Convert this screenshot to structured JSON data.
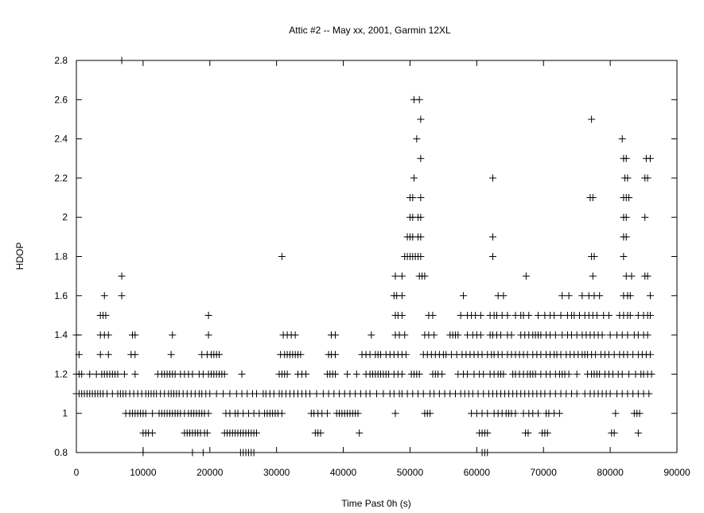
{
  "chart_data": {
    "type": "scatter",
    "title": "Attic #2 -- May xx, 2001, Garmin 12XL",
    "xlabel": "Time Past 0h  (s)",
    "ylabel": "HDOP",
    "xlim": [
      0,
      90000
    ],
    "ylim": [
      0.8,
      2.8
    ],
    "xticks": [
      "0",
      "10000",
      "20000",
      "30000",
      "40000",
      "50000",
      "60000",
      "70000",
      "80000",
      "90000"
    ],
    "yticks": [
      "0.8",
      "1",
      "1.2",
      "1.4",
      "1.6",
      "1.8",
      "2",
      "2.2",
      "2.4",
      "2.6",
      "2.8"
    ],
    "marker": "plus",
    "grid": false,
    "legend": "none",
    "series": [
      {
        "y": 0.8,
        "x": [
          10000,
          17400,
          19000,
          24600,
          25000,
          25400,
          25800,
          26200,
          26600,
          60800,
          61200,
          61600
        ]
      },
      {
        "y": 0.9,
        "x": [
          10000,
          10400,
          10800,
          11400,
          16200,
          16600,
          17000,
          17400,
          17800,
          18200,
          18600,
          19200,
          19600,
          22200,
          22600,
          23000,
          23400,
          23800,
          24200,
          24600,
          25000,
          25400,
          25800,
          26200,
          26600,
          27000,
          35800,
          36200,
          36600,
          42400,
          60400,
          60800,
          61200,
          61600,
          67300,
          67700,
          69800,
          70200,
          70600,
          80200,
          80600,
          84200
        ]
      },
      {
        "y": 1.0,
        "x": [
          7400,
          8000,
          8400,
          8800,
          9200,
          9600,
          10000,
          10400,
          11400,
          12400,
          12800,
          13200,
          13600,
          14000,
          14400,
          14800,
          15200,
          15600,
          16200,
          16800,
          17200,
          17600,
          18000,
          18400,
          18800,
          19200,
          19800,
          22400,
          23000,
          23800,
          24200,
          25000,
          25800,
          26600,
          27400,
          28200,
          28600,
          29000,
          29400,
          29800,
          30200,
          30800,
          35200,
          35600,
          36200,
          36800,
          37600,
          39000,
          39400,
          39800,
          40200,
          40600,
          41000,
          41400,
          41800,
          42200,
          47800,
          52200,
          52600,
          53000,
          59200,
          60000,
          60800,
          61600,
          62600,
          63200,
          63800,
          64400,
          64800,
          65200,
          65800,
          67000,
          67800,
          68400,
          69200,
          70400,
          70800,
          71600,
          72400,
          80800,
          83600,
          84000,
          84400
        ]
      },
      {
        "y": 1.1,
        "x": [
          0,
          400,
          800,
          1200,
          1600,
          2000,
          2400,
          2800,
          3200,
          3600,
          4000,
          4600,
          5400,
          6200,
          6600,
          7000,
          7400,
          8000,
          8600,
          9200,
          9800,
          10400,
          10800,
          11200,
          11600,
          12000,
          12600,
          13200,
          13800,
          14200,
          14600,
          15000,
          15400,
          16000,
          16600,
          17200,
          17800,
          18400,
          18800,
          19400,
          20000,
          21000,
          22000,
          23000,
          24000,
          24800,
          25600,
          26400,
          27000,
          28000,
          28400,
          29000,
          29600,
          30400,
          30800,
          31400,
          32000,
          32600,
          33200,
          33800,
          34400,
          35000,
          36000,
          37000,
          37800,
          38600,
          39400,
          40200,
          41000,
          41800,
          42600,
          43400,
          44000,
          45000,
          46000,
          47000,
          47600,
          48400,
          48800,
          49600,
          50400,
          51200,
          52000,
          53000,
          53600,
          54400,
          55200,
          56000,
          56800,
          57600,
          58200,
          58800,
          59400,
          60200,
          61000,
          61800,
          62400,
          63000,
          63600,
          64200,
          64800,
          65400,
          66000,
          66600,
          67200,
          67800,
          68400,
          69000,
          69600,
          70200,
          71000,
          71800,
          72600,
          73400,
          74200,
          75000,
          76200,
          77000,
          77600,
          78200,
          78800,
          79400,
          80000,
          81000,
          81800,
          82600,
          83400,
          84200,
          85000,
          85800
        ]
      },
      {
        "y": 1.2,
        "x": [
          0,
          400,
          800,
          2000,
          3000,
          3800,
          4200,
          4600,
          5000,
          5400,
          5800,
          6200,
          7200,
          8800,
          12200,
          12800,
          13200,
          13600,
          14000,
          14400,
          14800,
          15600,
          16200,
          16800,
          17400,
          18400,
          19000,
          19800,
          20200,
          20600,
          21000,
          21400,
          21800,
          22200,
          24800,
          30400,
          30800,
          31200,
          31600,
          33200,
          33800,
          34400,
          37600,
          38000,
          38400,
          38800,
          40600,
          42000,
          43400,
          44000,
          44400,
          44800,
          45200,
          45600,
          46000,
          46400,
          46800,
          47600,
          48200,
          48800,
          50200,
          50600,
          51000,
          51400,
          53400,
          53800,
          54200,
          54800,
          57200,
          58000,
          58600,
          59600,
          60400,
          61000,
          62000,
          62600,
          63200,
          63600,
          64000,
          65400,
          65800,
          66400,
          67000,
          67600,
          68000,
          68400,
          68800,
          69600,
          70400,
          71000,
          71800,
          72400,
          72800,
          73200,
          73800,
          75000,
          76600,
          77200,
          77600,
          78000,
          78400,
          79200,
          79800,
          80400,
          81200,
          81800,
          82800,
          83800,
          84600,
          85000,
          85600,
          86200
        ]
      },
      {
        "y": 1.3,
        "x": [
          400,
          3600,
          4800,
          8200,
          8800,
          14200,
          18800,
          19600,
          20200,
          20600,
          21000,
          21400,
          30600,
          31200,
          31600,
          32000,
          32400,
          32800,
          33200,
          33600,
          37800,
          38200,
          38800,
          42800,
          43400,
          44000,
          44800,
          45200,
          45600,
          46400,
          47000,
          47600,
          48200,
          48800,
          49400,
          52000,
          52600,
          53200,
          53800,
          54400,
          55000,
          55400,
          56200,
          57000,
          57800,
          58400,
          59000,
          59600,
          60200,
          60800,
          61600,
          62200,
          62600,
          63200,
          63800,
          64600,
          65200,
          65800,
          66400,
          67000,
          67600,
          68400,
          69000,
          69600,
          70400,
          71000,
          71600,
          72000,
          72600,
          73400,
          74000,
          74600,
          75200,
          75800,
          76200,
          76600,
          77200,
          77800,
          78600,
          79200,
          79800,
          80600,
          81400,
          82000,
          82600,
          83400,
          84200,
          84800,
          85400,
          86000
        ]
      },
      {
        "y": 1.4,
        "x": [
          0,
          3600,
          4200,
          4800,
          8400,
          8800,
          14400,
          19800,
          31000,
          31600,
          32200,
          32800,
          38200,
          38800,
          44200,
          47800,
          48400,
          49200,
          52200,
          52800,
          53600,
          56000,
          56400,
          56800,
          57200,
          58600,
          59400,
          60000,
          60600,
          62000,
          62400,
          63000,
          63600,
          64600,
          65200,
          66600,
          67200,
          67800,
          68400,
          68800,
          69200,
          69600,
          70400,
          71000,
          71800,
          72800,
          73600,
          74200,
          75000,
          75800,
          76400,
          77000,
          77600,
          78200,
          78800,
          80000,
          81000,
          81800,
          82600,
          83600,
          84200,
          85000,
          85600
        ]
      },
      {
        "y": 1.5,
        "x": [
          3600,
          4000,
          4400,
          19800,
          47800,
          48200,
          48800,
          52800,
          53400,
          57600,
          58600,
          59200,
          59800,
          60600,
          62000,
          62600,
          63000,
          63800,
          64600,
          65800,
          66600,
          67000,
          67800,
          69200,
          70200,
          71000,
          71600,
          72600,
          73600,
          74200,
          74600,
          75400,
          76200,
          76800,
          77400,
          78000,
          79000,
          79800,
          81400,
          82000,
          82600,
          83000,
          84200,
          85000,
          85600,
          86000
        ]
      },
      {
        "y": 1.6,
        "x": [
          4200,
          6800,
          47600,
          48000,
          48800,
          58000,
          63200,
          64000,
          72800,
          73800,
          75800,
          76800,
          77600,
          78400,
          82000,
          82600,
          83000,
          86000
        ]
      },
      {
        "y": 1.7,
        "x": [
          6800,
          47800,
          48800,
          51400,
          51800,
          52200,
          67400,
          77400,
          82400,
          83200,
          85200,
          85600
        ]
      },
      {
        "y": 1.8,
        "x": [
          30800,
          49200,
          49600,
          50000,
          50400,
          50800,
          51200,
          51600,
          62400,
          77200,
          77600,
          82000
        ]
      },
      {
        "y": 1.9,
        "x": [
          49600,
          50000,
          50400,
          51200,
          51600,
          62400,
          82000,
          82400
        ]
      },
      {
        "y": 2.0,
        "x": [
          50000,
          50400,
          51200,
          51600,
          82000,
          82400,
          85200
        ]
      },
      {
        "y": 2.1,
        "x": [
          50000,
          50400,
          51600,
          77000,
          77400,
          82000,
          82400,
          82800
        ]
      },
      {
        "y": 2.2,
        "x": [
          50600,
          62400,
          82200,
          82600,
          85200,
          85600
        ]
      },
      {
        "y": 2.3,
        "x": [
          51600,
          82000,
          82400,
          85400,
          86000
        ]
      },
      {
        "y": 2.4,
        "x": [
          51000,
          81800
        ]
      },
      {
        "y": 2.5,
        "x": [
          51600,
          77200
        ]
      },
      {
        "y": 2.6,
        "x": [
          50600,
          51400
        ]
      },
      {
        "y": 2.8,
        "x": [
          6800
        ]
      }
    ]
  }
}
